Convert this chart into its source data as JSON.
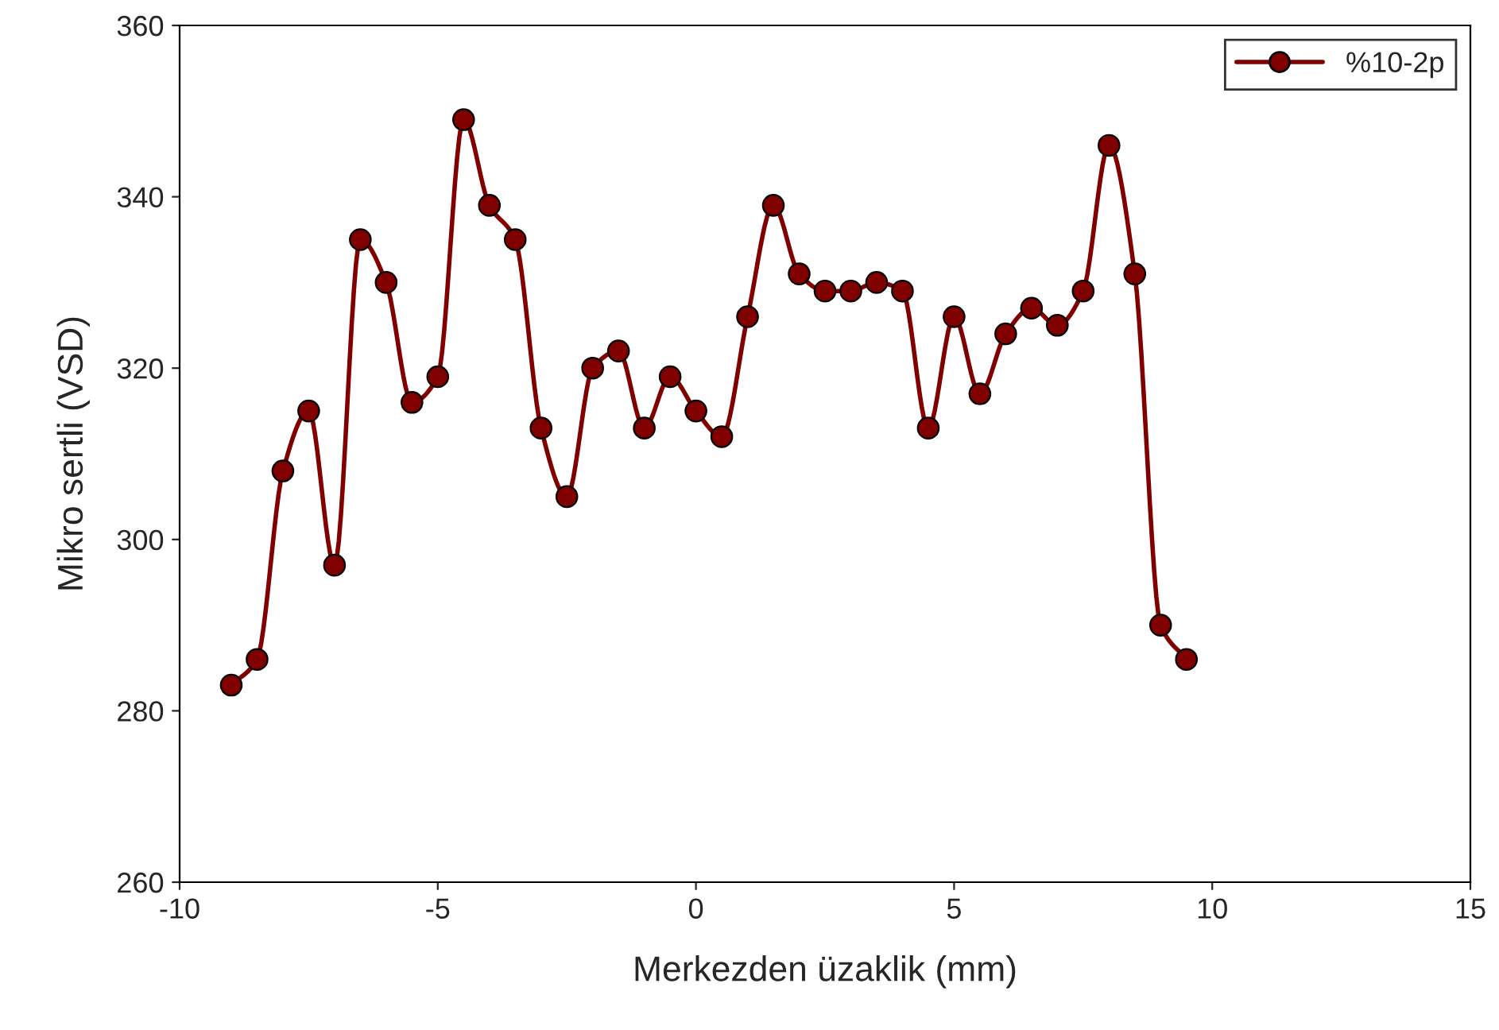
{
  "chart_data": {
    "type": "line",
    "xlabel": "Merkezden üzaklik (mm)",
    "ylabel": "Mikro sertli (VSD)",
    "x": [
      -9,
      -8.5,
      -8,
      -7.5,
      -7,
      -6.5,
      -6,
      -5.5,
      -5,
      -4.5,
      -4,
      -3.5,
      -3,
      -2.5,
      -2,
      -1.5,
      -1,
      -0.5,
      0,
      0.5,
      1,
      1.5,
      2,
      2.5,
      3,
      3.5,
      4,
      4.5,
      5,
      5.5,
      6,
      6.5,
      7,
      7.5,
      8,
      8.5,
      9,
      9.5
    ],
    "series": [
      {
        "name": "%10-2p",
        "color": "#800000",
        "values": [
          283,
          286,
          308,
          315,
          297,
          335,
          330,
          316,
          319,
          349,
          339,
          335,
          313,
          305,
          320,
          322,
          313,
          319,
          315,
          312,
          326,
          339,
          331,
          329,
          329,
          330,
          329,
          313,
          326,
          317,
          324,
          327,
          325,
          329,
          346,
          331,
          290,
          286
        ]
      }
    ],
    "xlim": [
      -10,
      15
    ],
    "xticks": [
      -10,
      -5,
      0,
      5,
      10,
      15
    ],
    "ylim": [
      260,
      360
    ],
    "yticks": [
      260,
      280,
      300,
      320,
      340,
      360
    ],
    "marker": "circle",
    "line_style": "solid",
    "legend": "top right",
    "grid": false
  }
}
